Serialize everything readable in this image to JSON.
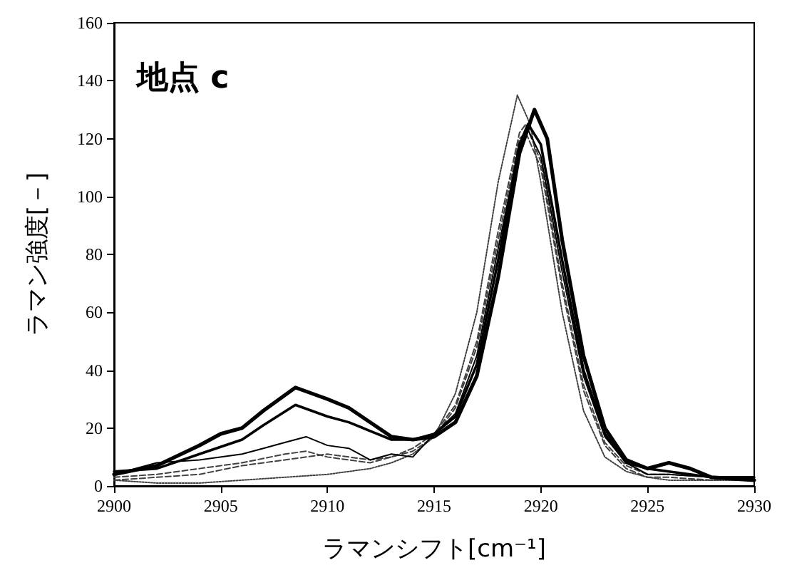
{
  "chart_data": {
    "type": "line",
    "xlabel": "ラマンシフト[cm⁻¹]",
    "ylabel": "ラマン強度[－]",
    "annotations": [
      "地点 c"
    ],
    "xlim": [
      2900,
      2930
    ],
    "xticks": [
      2900,
      2905,
      2910,
      2915,
      2920,
      2925,
      2930
    ],
    "ylim": [
      0,
      160
    ],
    "yticks": [
      0,
      20,
      40,
      60,
      80,
      100,
      120,
      140,
      160
    ],
    "grid": false,
    "marker": "none",
    "series": [
      {
        "color": "#000000",
        "line_style": "solid",
        "x": [
          2900,
          2902,
          2904,
          2905,
          2906,
          2907,
          2908.5,
          2910,
          2911,
          2912,
          2913,
          2914,
          2915,
          2916,
          2917,
          2918,
          2919,
          2919.7,
          2920.3,
          2921,
          2922,
          2923,
          2924,
          2925,
          2926,
          2927,
          2928,
          2930
        ],
        "values": [
          4,
          7,
          14,
          18,
          20,
          26,
          34,
          30,
          27,
          22,
          17,
          16,
          17,
          22,
          38,
          72,
          115,
          130,
          120,
          85,
          45,
          20,
          9,
          6,
          8,
          6,
          3,
          2
        ]
      },
      {
        "color": "#000000",
        "line_style": "solid",
        "x": [
          2900,
          2902,
          2904,
          2906,
          2907,
          2908.5,
          2910,
          2911,
          2912,
          2913,
          2914,
          2915,
          2916,
          2917,
          2918,
          2919,
          2919.4,
          2920,
          2921,
          2922,
          2923,
          2924,
          2925,
          2926,
          2928,
          2930
        ],
        "values": [
          5,
          6,
          11,
          16,
          21,
          28,
          24,
          22,
          19,
          16,
          16,
          18,
          24,
          42,
          78,
          118,
          125,
          118,
          78,
          40,
          18,
          8,
          6,
          5,
          3,
          3
        ]
      },
      {
        "color": "#000000",
        "line_style": "solid",
        "x": [
          2900,
          2902,
          2904,
          2906,
          2907,
          2908,
          2909,
          2910,
          2911,
          2912,
          2913,
          2914,
          2915,
          2916,
          2917,
          2918,
          2919,
          2919.4,
          2920,
          2921,
          2922,
          2923,
          2924,
          2925,
          2926,
          2928,
          2930
        ],
        "values": [
          4,
          8,
          9,
          11,
          13,
          15,
          17,
          14,
          13,
          9,
          11,
          10,
          18,
          25,
          45,
          82,
          118,
          123,
          114,
          74,
          38,
          17,
          8,
          4,
          4,
          3,
          3
        ]
      },
      {
        "color": "#404040",
        "line_style": "dashed",
        "x": [
          2900,
          2902,
          2904,
          2906,
          2908,
          2909,
          2910,
          2911,
          2912,
          2913,
          2914,
          2915,
          2916,
          2917,
          2918,
          2919,
          2919.3,
          2920,
          2921,
          2922,
          2923,
          2924,
          2925,
          2926,
          2928,
          2930
        ],
        "values": [
          3,
          4,
          6,
          8,
          11,
          12,
          10,
          9,
          8,
          10,
          13,
          18,
          28,
          50,
          88,
          122,
          125,
          112,
          70,
          35,
          15,
          7,
          4,
          4,
          3,
          3
        ]
      },
      {
        "color": "#404040",
        "line_style": "dashed",
        "x": [
          2900,
          2902,
          2904,
          2906,
          2908,
          2910,
          2911,
          2912,
          2913,
          2914,
          2915,
          2916,
          2917,
          2918,
          2919,
          2919.3,
          2920,
          2921,
          2922,
          2923,
          2924,
          2925,
          2926,
          2928,
          2930
        ],
        "values": [
          2,
          3,
          4,
          7,
          9,
          11,
          10,
          9,
          10,
          12,
          17,
          27,
          48,
          85,
          120,
          122,
          110,
          68,
          33,
          14,
          6,
          3,
          3,
          2,
          3
        ]
      },
      {
        "color": "#404040",
        "line_style": "dotted",
        "x": [
          2900,
          2902,
          2904,
          2906,
          2908,
          2910,
          2912,
          2913,
          2914,
          2915,
          2916,
          2917,
          2918,
          2918.9,
          2919.5,
          2920,
          2921,
          2922,
          2923,
          2924,
          2925,
          2926,
          2928,
          2930
        ],
        "values": [
          2,
          1,
          1,
          2,
          3,
          4,
          6,
          8,
          11,
          17,
          32,
          60,
          105,
          135,
          125,
          105,
          60,
          26,
          10,
          5,
          3,
          2,
          2,
          2
        ]
      }
    ]
  }
}
